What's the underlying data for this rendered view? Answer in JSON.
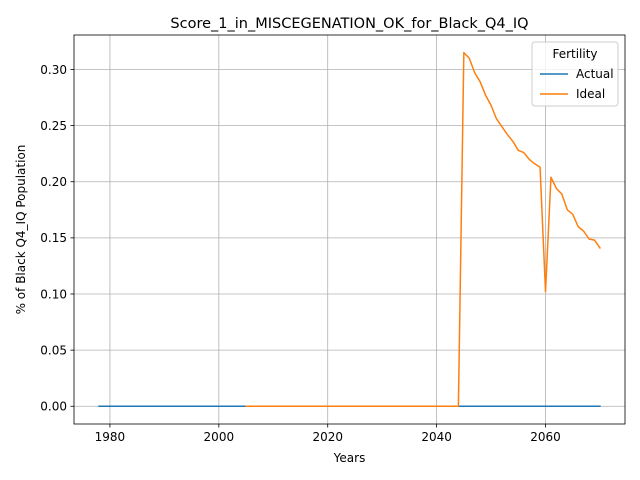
{
  "chart_data": {
    "type": "line",
    "title": "Score_1_in_MISCEGENATION_OK_for_Black_Q4_IQ",
    "xlabel": "Years",
    "ylabel": "% of Black Q4_IQ Population",
    "xlim": [
      1973.4,
      2074.6
    ],
    "ylim": [
      -0.0158,
      0.3307
    ],
    "xticks": [
      1980,
      2000,
      2020,
      2040,
      2060
    ],
    "xtick_labels": [
      "1980",
      "2000",
      "2020",
      "2040",
      "2060"
    ],
    "yticks": [
      0.0,
      0.05,
      0.1,
      0.15,
      0.2,
      0.25,
      0.3
    ],
    "ytick_labels": [
      "0.00",
      "0.05",
      "0.10",
      "0.15",
      "0.20",
      "0.25",
      "0.30"
    ],
    "grid": true,
    "legend": {
      "title": "Fertility",
      "placement": "top-right"
    },
    "series": [
      {
        "name": "Actual",
        "color": "#1f77b4",
        "x": [
          1978,
          2070
        ],
        "y": [
          0.0,
          0.0
        ]
      },
      {
        "name": "Ideal",
        "color": "#ff7f0e",
        "x": [
          2005,
          2044,
          2045,
          2046,
          2047,
          2048,
          2049,
          2050,
          2051,
          2052,
          2053,
          2054,
          2055,
          2056,
          2057,
          2058,
          2059,
          2060,
          2061,
          2062,
          2063,
          2064,
          2065,
          2066,
          2067,
          2068,
          2069,
          2070
        ],
        "y": [
          0.0,
          0.0,
          0.315,
          0.31,
          0.297,
          0.289,
          0.277,
          0.268,
          0.256,
          0.249,
          0.242,
          0.236,
          0.228,
          0.226,
          0.22,
          0.216,
          0.213,
          0.102,
          0.204,
          0.194,
          0.189,
          0.175,
          0.171,
          0.16,
          0.156,
          0.149,
          0.148,
          0.141
        ]
      }
    ]
  }
}
